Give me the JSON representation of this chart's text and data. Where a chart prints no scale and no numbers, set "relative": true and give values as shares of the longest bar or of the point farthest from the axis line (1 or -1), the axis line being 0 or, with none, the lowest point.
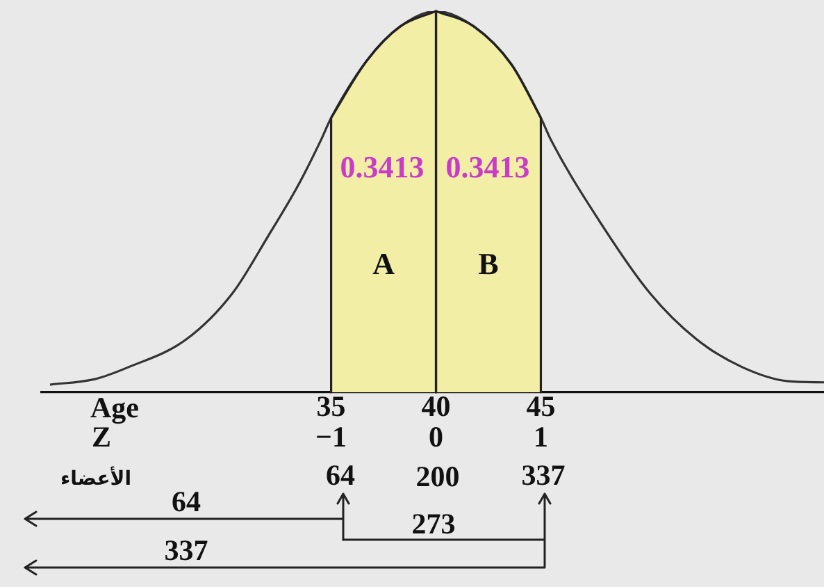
{
  "chart_data": {
    "type": "line",
    "relative": true,
    "xlim": [
      21.2,
      58.5
    ],
    "xticks": [
      35,
      40,
      45
    ],
    "xlabel": "Age",
    "x2lim": [
      -3.76,
      3.7
    ],
    "x2ticks": [
      {
        "value": -1,
        "label": "−1"
      },
      0,
      1
    ],
    "x2label": "Z",
    "series": [
      {
        "color": "#333333",
        "x": [
          21.6,
          23.7,
          25.3,
          28.1,
          30.3,
          32.0,
          33.4,
          34.5,
          35,
          36.7,
          38.3,
          40,
          41.8,
          43.6,
          45,
          45.5,
          47.9,
          50.2,
          52.4,
          54.6,
          56.8,
          58.5
        ],
        "values": [
          0.02,
          0.034,
          0.065,
          0.139,
          0.26,
          0.41,
          0.54,
          0.66,
          0.72,
          0.87,
          0.96,
          1,
          0.96,
          0.86,
          0.72,
          0.66,
          0.44,
          0.26,
          0.14,
          0.066,
          0.029,
          0.026
        ]
      },
      {
        "type": "area",
        "name": "A",
        "color": "#f2eea6",
        "x": [
          35,
          36.7,
          38.3,
          40
        ],
        "values": [
          0.72,
          0.87,
          0.96,
          1
        ]
      },
      {
        "type": "area",
        "name": "B",
        "color": "#f2eea6",
        "x": [
          40,
          41.8,
          43.6,
          45
        ],
        "values": [
          1,
          0.96,
          0.86,
          0.72
        ]
      }
    ],
    "annotations": [
      "0.3413",
      "0.3413",
      "الأعضاء",
      "64",
      "200",
      "337",
      "64",
      "273",
      "337"
    ],
    "grid": false,
    "legend": false,
    "marker": "none"
  }
}
